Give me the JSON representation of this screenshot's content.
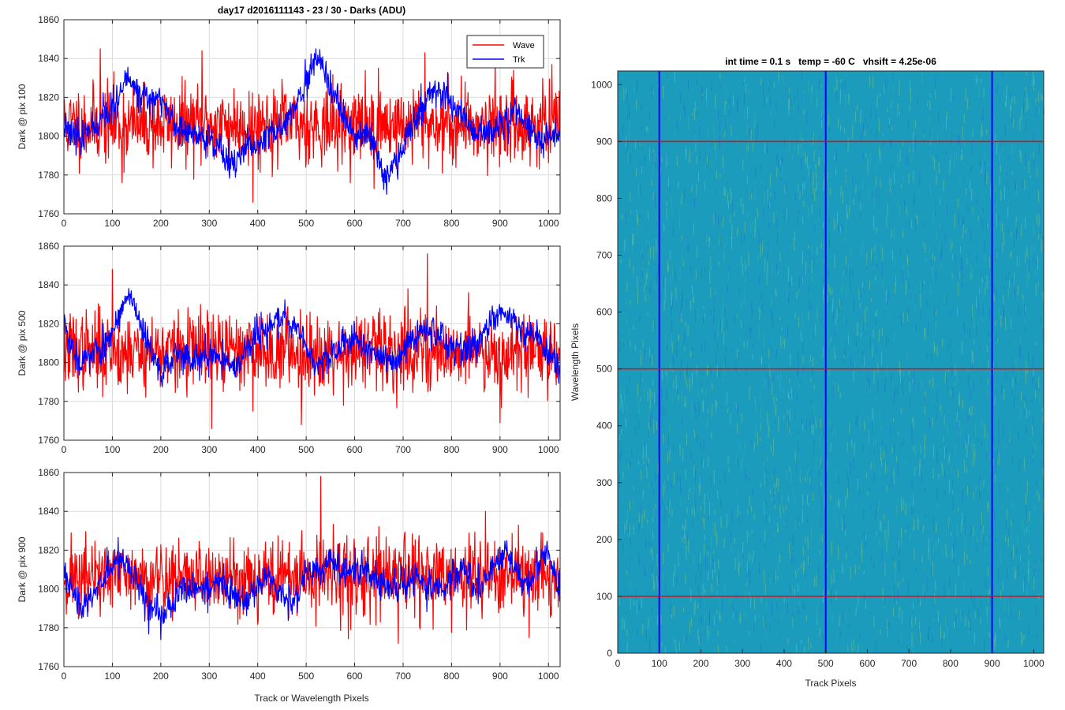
{
  "chart_data": [
    {
      "type": "line",
      "title": "day17 d2016111143 - 23 / 30 - Darks (ADU)",
      "ylabel": "Dark @ pix 100",
      "xlabel": "",
      "xlim": [
        0,
        1024
      ],
      "ylim": [
        1760,
        1860
      ],
      "xticks": [
        "0",
        "100",
        "200",
        "300",
        "400",
        "500",
        "600",
        "700",
        "800",
        "900",
        "1000"
      ],
      "yticks": [
        "1760",
        "1780",
        "1800",
        "1820",
        "1840",
        "1860"
      ],
      "grid": true,
      "legend": {
        "placement": "top-right",
        "entries": [
          "Wave",
          "Trk"
        ]
      },
      "colors": {
        "Wave": "#ff0000",
        "Trk": "#0000ff"
      },
      "series": [
        {
          "name": "Wave",
          "seed": 11,
          "n": 1024,
          "mean": 1806,
          "noise": 10,
          "slow": 0,
          "min": 1765,
          "max": 1845,
          "spikes": [
            [
              75,
              1845
            ],
            [
              120,
              1776
            ],
            [
              285,
              1844
            ],
            [
              390,
              1766
            ],
            [
              640,
              1773
            ],
            [
              745,
              1843
            ],
            [
              820,
              1831
            ],
            [
              890,
              1840
            ]
          ]
        },
        {
          "name": "Trk",
          "seed": 23,
          "n": 1024,
          "mean": 1806,
          "noise": 4,
          "slow": 13,
          "min": 1767,
          "max": 1845,
          "anchors": [
            [
              0,
              1806
            ],
            [
              40,
              1800
            ],
            [
              70,
              1802
            ],
            [
              135,
              1828
            ],
            [
              160,
              1822
            ],
            [
              200,
              1818
            ],
            [
              230,
              1805
            ],
            [
              260,
              1800
            ],
            [
              300,
              1800
            ],
            [
              345,
              1785
            ],
            [
              380,
              1793
            ],
            [
              420,
              1797
            ],
            [
              480,
              1815
            ],
            [
              520,
              1838
            ],
            [
              560,
              1818
            ],
            [
              600,
              1800
            ],
            [
              640,
              1796
            ],
            [
              665,
              1780
            ],
            [
              700,
              1796
            ],
            [
              760,
              1822
            ],
            [
              790,
              1820
            ],
            [
              830,
              1805
            ],
            [
              880,
              1800
            ],
            [
              930,
              1815
            ],
            [
              980,
              1800
            ],
            [
              1023,
              1802
            ]
          ]
        }
      ]
    },
    {
      "type": "line",
      "title": "",
      "ylabel": "Dark @ pix 500",
      "xlabel": "",
      "xlim": [
        0,
        1024
      ],
      "ylim": [
        1760,
        1860
      ],
      "xticks": [
        "0",
        "100",
        "200",
        "300",
        "400",
        "500",
        "600",
        "700",
        "800",
        "900",
        "1000"
      ],
      "yticks": [
        "1760",
        "1780",
        "1800",
        "1820",
        "1840",
        "1860"
      ],
      "grid": true,
      "series": [
        {
          "name": "Wave",
          "seed": 37,
          "n": 1024,
          "mean": 1806,
          "noise": 10,
          "slow": 0,
          "min": 1766,
          "max": 1856,
          "spikes": [
            [
              100,
              1848
            ],
            [
              305,
              1766
            ],
            [
              490,
              1768
            ],
            [
              710,
              1838
            ],
            [
              750,
              1856
            ],
            [
              835,
              1836
            ],
            [
              900,
              1769
            ]
          ]
        },
        {
          "name": "Trk",
          "seed": 53,
          "n": 1024,
          "mean": 1806,
          "noise": 4,
          "slow": 13,
          "min": 1774,
          "max": 1844,
          "anchors": [
            [
              0,
              1822
            ],
            [
              30,
              1800
            ],
            [
              80,
              1808
            ],
            [
              135,
              1835
            ],
            [
              170,
              1810
            ],
            [
              200,
              1795
            ],
            [
              240,
              1805
            ],
            [
              300,
              1804
            ],
            [
              360,
              1800
            ],
            [
              400,
              1814
            ],
            [
              450,
              1823
            ],
            [
              480,
              1820
            ],
            [
              520,
              1798
            ],
            [
              560,
              1808
            ],
            [
              600,
              1812
            ],
            [
              640,
              1805
            ],
            [
              690,
              1800
            ],
            [
              740,
              1820
            ],
            [
              800,
              1808
            ],
            [
              860,
              1810
            ],
            [
              900,
              1828
            ],
            [
              940,
              1815
            ],
            [
              980,
              1812
            ],
            [
              1023,
              1795
            ]
          ]
        }
      ]
    },
    {
      "type": "line",
      "title": "",
      "ylabel": "Dark @ pix 900",
      "xlabel": "Track or Wavelength Pixels",
      "xlim": [
        0,
        1024
      ],
      "ylim": [
        1760,
        1860
      ],
      "xticks": [
        "0",
        "100",
        "200",
        "300",
        "400",
        "500",
        "600",
        "700",
        "800",
        "900",
        "1000"
      ],
      "yticks": [
        "1760",
        "1780",
        "1800",
        "1820",
        "1840",
        "1860"
      ],
      "grid": true,
      "series": [
        {
          "name": "Wave",
          "seed": 71,
          "n": 1024,
          "mean": 1806,
          "noise": 10,
          "slow": 0,
          "min": 1770,
          "max": 1858,
          "spikes": [
            [
              530,
              1858
            ],
            [
              690,
              1772
            ],
            [
              870,
              1840
            ],
            [
              960,
              1775
            ]
          ]
        },
        {
          "name": "Trk",
          "seed": 89,
          "n": 1024,
          "mean": 1804,
          "noise": 4,
          "slow": 11,
          "min": 1770,
          "max": 1832,
          "anchors": [
            [
              0,
              1810
            ],
            [
              40,
              1790
            ],
            [
              80,
              1808
            ],
            [
              120,
              1816
            ],
            [
              160,
              1800
            ],
            [
              200,
              1785
            ],
            [
              260,
              1802
            ],
            [
              320,
              1800
            ],
            [
              380,
              1795
            ],
            [
              420,
              1806
            ],
            [
              470,
              1790
            ],
            [
              500,
              1810
            ],
            [
              540,
              1815
            ],
            [
              580,
              1806
            ],
            [
              620,
              1812
            ],
            [
              660,
              1802
            ],
            [
              720,
              1805
            ],
            [
              780,
              1800
            ],
            [
              820,
              1808
            ],
            [
              860,
              1800
            ],
            [
              910,
              1822
            ],
            [
              960,
              1800
            ],
            [
              1000,
              1820
            ],
            [
              1023,
              1800
            ]
          ]
        }
      ]
    },
    {
      "type": "heatmap",
      "title": "int time = 0.1 s   temp = -60 C   vhsift = 4.25e-06",
      "xlabel": "Track Pixels",
      "ylabel": "Wavelength Pixels",
      "xlim": [
        0,
        1024
      ],
      "ylim": [
        0,
        1024
      ],
      "xticks": [
        "0",
        "100",
        "200",
        "300",
        "400",
        "500",
        "600",
        "700",
        "800",
        "900",
        "1000"
      ],
      "yticks": [
        "0",
        "100",
        "200",
        "300",
        "400",
        "500",
        "600",
        "700",
        "800",
        "900",
        "1000"
      ],
      "colors": {
        "base": "#1c9cbc",
        "high": "#7fc97a",
        "low": "#1a72c8"
      },
      "vertical_lines": {
        "x": [
          100,
          500,
          900
        ],
        "color": "#0000ff"
      },
      "horizontal_lines": {
        "y": [
          100,
          500,
          900
        ],
        "color": "#ff0000"
      }
    }
  ]
}
